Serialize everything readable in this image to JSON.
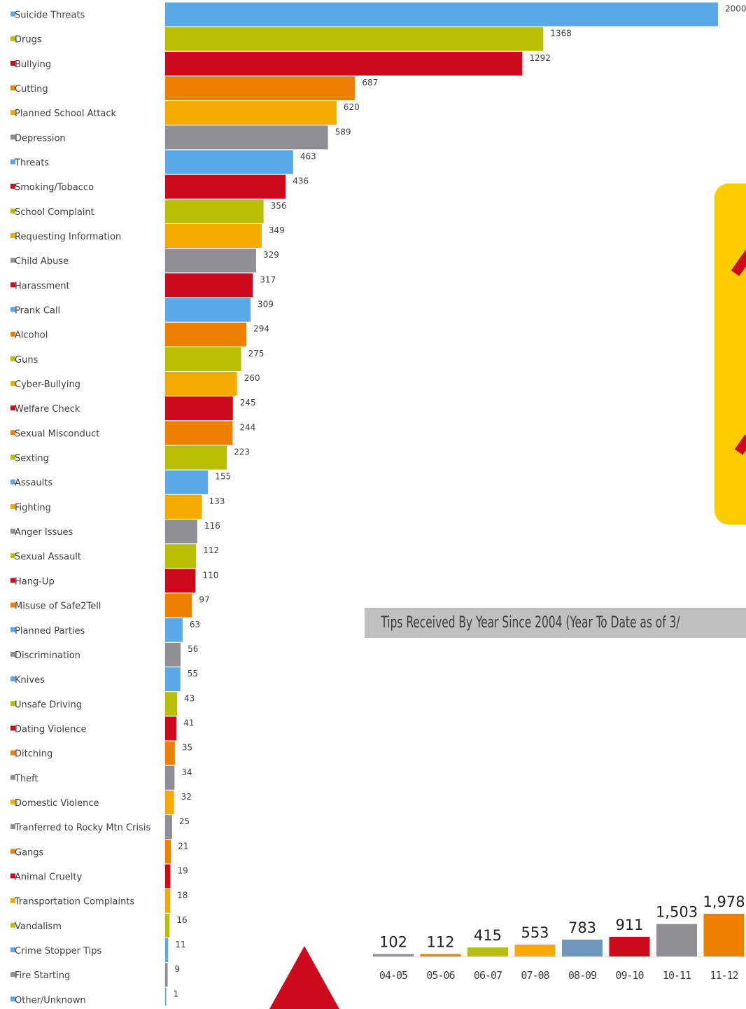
{
  "colors": {
    "blue": "#5aa8e8",
    "green": "#b8be00",
    "red": "#cc0a1c",
    "orange": "#ee8000",
    "gold": "#f5aa00",
    "gray": "#8f8f96",
    "steel": "#6f96bd",
    "banner": "#c0c0c0",
    "callout": "#ffcc00"
  },
  "banner": {
    "title": "Tips Received By Year Since 2004 (Year To Date as of 3/"
  },
  "chart_data": [
    {
      "type": "bar",
      "orientation": "horizontal",
      "categories": [
        "Suicide Threats",
        "Drugs",
        "Bullying",
        "Cutting",
        "Planned School Attack",
        "Depression",
        "Threats",
        "Smoking/Tobacco",
        "School Complaint",
        "Requesting Information",
        "Child Abuse",
        "Harassment",
        "Prank Call",
        "Alcohol",
        "Guns",
        "Cyber-Bullying",
        "Welfare Check",
        "Sexual Misconduct",
        "Sexting",
        "Assaults",
        "Fighting",
        "Anger Issues",
        "Sexual Assault",
        "Hang-Up",
        "Misuse of Safe2Tell",
        "Planned Parties",
        "Discrimination",
        "Knives",
        "Unsafe Driving",
        "Dating Violence",
        "Ditching",
        "Theft",
        "Domestic Violence",
        "Tranferred to Rocky Mtn Crisis",
        "Gangs",
        "Animal Cruelty",
        "Transportation Complaints",
        "Vandalism",
        "Crime Stopper Tips",
        "Fire Starting",
        "Other/Unknown"
      ],
      "values": [
        2000,
        1368,
        1292,
        687,
        620,
        589,
        463,
        436,
        356,
        349,
        329,
        317,
        309,
        294,
        275,
        260,
        245,
        244,
        223,
        155,
        133,
        116,
        112,
        110,
        97,
        63,
        56,
        55,
        43,
        41,
        35,
        34,
        32,
        25,
        21,
        19,
        18,
        16,
        11,
        9,
        1
      ],
      "value_labels": [
        "2000",
        "1368",
        "1292",
        "687",
        "620",
        "589",
        "463",
        "436",
        "356",
        "349",
        "329",
        "317",
        "309",
        "294",
        "275",
        "260",
        "245",
        "244",
        "223",
        "155",
        "133",
        "116",
        "112",
        "110",
        "97",
        "63",
        "56",
        "55",
        "43",
        "41",
        "35",
        "34",
        "32",
        "25",
        "21",
        "19",
        "18",
        "16",
        "11",
        "9",
        "1"
      ],
      "colors": [
        "blue",
        "green",
        "red",
        "orange",
        "gold",
        "gray",
        "blue",
        "red",
        "green",
        "gold",
        "gray",
        "red",
        "blue",
        "orange",
        "green",
        "gold",
        "red",
        "orange",
        "green",
        "blue",
        "gold",
        "gray",
        "green",
        "red",
        "orange",
        "blue",
        "gray",
        "blue",
        "green",
        "red",
        "orange",
        "gray",
        "gold",
        "gray",
        "orange",
        "red",
        "gold",
        "green",
        "blue",
        "gray",
        "blue"
      ],
      "xlim": [
        0,
        2000
      ]
    },
    {
      "type": "bar",
      "categories": [
        "04-05",
        "05-06",
        "06-07",
        "07-08",
        "08-09",
        "09-10",
        "10-11",
        "11-12"
      ],
      "values": [
        102,
        112,
        415,
        553,
        783,
        911,
        1503,
        1978
      ],
      "value_labels": [
        "102",
        "112",
        "415",
        "553",
        "783",
        "911",
        "1,503",
        "1,978"
      ],
      "colors": [
        "gray",
        "orange",
        "green",
        "gold",
        "steel",
        "red",
        "gray",
        "orange"
      ],
      "ylim": [
        0,
        1978
      ]
    }
  ]
}
